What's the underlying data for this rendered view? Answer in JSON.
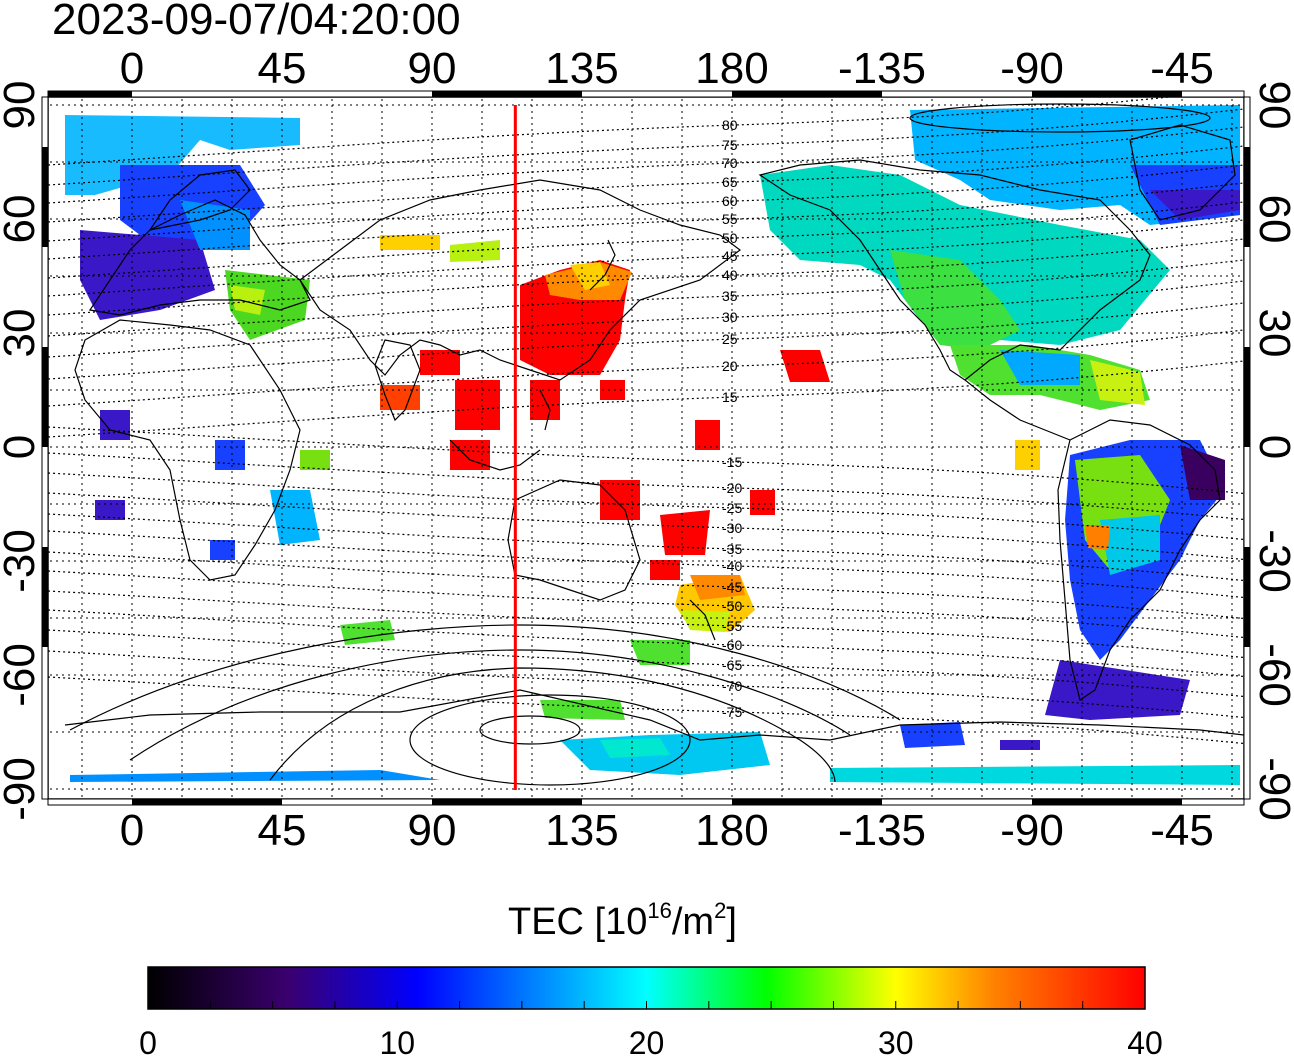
{
  "title": "2023-09-07/04:20:00",
  "map": {
    "lon_ticks": [
      "0",
      "45",
      "90",
      "135",
      "180",
      "-135",
      "-90",
      "-45"
    ],
    "lat_ticks": [
      "90",
      "60",
      "30",
      "0",
      "-30",
      "-60",
      "-90"
    ],
    "magnetic_latitude_labels": [
      "80",
      "75",
      "70",
      "65",
      "60",
      "55",
      "50",
      "45",
      "40",
      "35",
      "30",
      "25",
      "20",
      "15",
      "-15",
      "-20",
      "-25",
      "-30",
      "-35",
      "-40",
      "-45",
      "-50",
      "-55",
      "-60",
      "-65",
      "-70",
      "-75"
    ],
    "terminator_longitude": 115,
    "terminator_color": "#ff0000"
  },
  "colorbar": {
    "title_prefix": "TEC  [10",
    "title_exp": "16",
    "title_mid": "/m",
    "title_exp2": "2",
    "title_suffix": "]",
    "ticks": [
      "0",
      "10",
      "20",
      "30",
      "40"
    ],
    "min": 0,
    "max": 40,
    "stops": [
      "#000000",
      "#3a006e",
      "#0000ff",
      "#00ffff",
      "#00ff00",
      "#ffff00",
      "#ff8000",
      "#ff0000"
    ]
  }
}
